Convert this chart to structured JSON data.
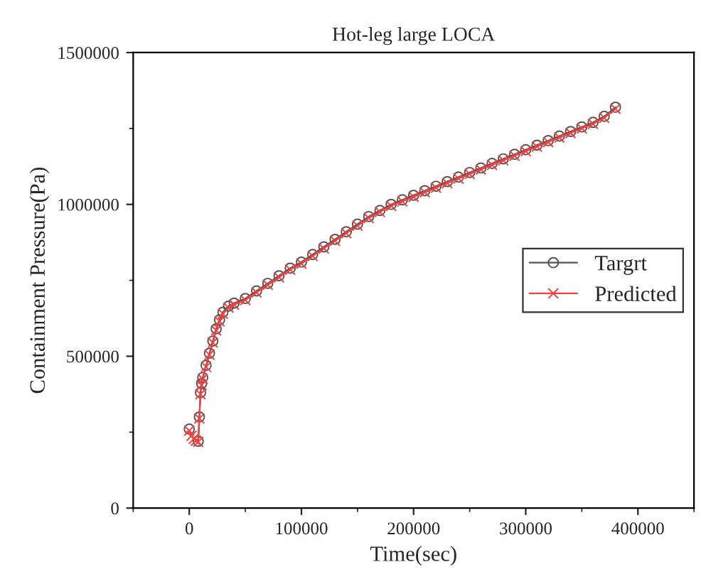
{
  "chart_data": {
    "type": "line",
    "title": "Hot-leg large LOCA",
    "xlabel": "Time(sec)",
    "ylabel": "Containment Pressure(Pa)",
    "x": [
      0,
      2000,
      4000,
      6000,
      8000,
      9000,
      10000,
      11000,
      12000,
      15000,
      18000,
      21000,
      24000,
      27000,
      30000,
      35000,
      40000,
      50000,
      60000,
      70000,
      80000,
      90000,
      100000,
      110000,
      120000,
      130000,
      140000,
      150000,
      160000,
      170000,
      180000,
      190000,
      200000,
      210000,
      220000,
      230000,
      240000,
      250000,
      260000,
      270000,
      280000,
      290000,
      300000,
      310000,
      320000,
      330000,
      340000,
      350000,
      360000,
      370000,
      380000
    ],
    "series": [
      {
        "name": "Targrt",
        "color": "#555555",
        "marker": "circle",
        "values": [
          260000,
          null,
          null,
          null,
          220000,
          300000,
          380000,
          410000,
          430000,
          470000,
          510000,
          550000,
          590000,
          620000,
          645000,
          665000,
          675000,
          690000,
          715000,
          740000,
          765000,
          790000,
          810000,
          835000,
          860000,
          885000,
          910000,
          935000,
          960000,
          980000,
          1000000,
          1015000,
          1030000,
          1045000,
          1060000,
          1075000,
          1090000,
          1105000,
          1120000,
          1135000,
          1150000,
          1165000,
          1180000,
          1195000,
          1210000,
          1225000,
          1240000,
          1255000,
          1270000,
          1290000,
          1320000
        ]
      },
      {
        "name": "Predicted",
        "color": "#f04040",
        "marker": "cross",
        "values": [
          255000,
          238000,
          228000,
          222000,
          218000,
          295000,
          375000,
          405000,
          425000,
          465000,
          505000,
          545000,
          585000,
          615000,
          640000,
          660000,
          670000,
          685000,
          710000,
          735000,
          760000,
          785000,
          805000,
          830000,
          855000,
          880000,
          905000,
          930000,
          955000,
          975000,
          995000,
          1010000,
          1025000,
          1040000,
          1055000,
          1070000,
          1085000,
          1100000,
          1115000,
          1130000,
          1145000,
          1160000,
          1175000,
          1190000,
          1205000,
          1220000,
          1235000,
          1250000,
          1265000,
          1285000,
          1315000
        ]
      }
    ],
    "xlim": [
      -50000,
      450000
    ],
    "xticks": [
      0,
      100000,
      200000,
      300000,
      400000
    ],
    "ylim": [
      0,
      1500000
    ],
    "yticks": [
      0,
      500000,
      1000000,
      1500000
    ],
    "legend": "right",
    "grid": false,
    "line_style": "solid"
  }
}
